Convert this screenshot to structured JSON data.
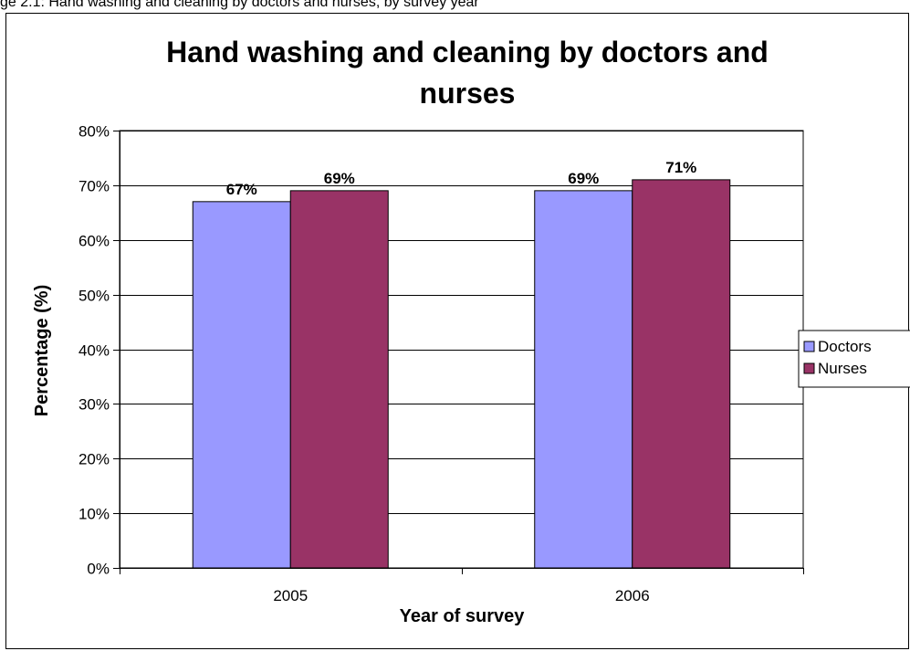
{
  "caption": "ge 2.1: Hand washing and cleaning by doctors and nurses, by survey year",
  "chart_data": {
    "type": "bar",
    "title_lines": [
      "Hand washing and cleaning by doctors and",
      "nurses"
    ],
    "xlabel": "Year of survey",
    "ylabel": "Percentage (%)",
    "categories": [
      "2005",
      "2006"
    ],
    "series": [
      {
        "name": "Doctors",
        "values": [
          67,
          69
        ],
        "labels": [
          "67%",
          "69%"
        ],
        "color": "#9999ff"
      },
      {
        "name": "Nurses",
        "values": [
          69,
          71
        ],
        "labels": [
          "69%",
          "71%"
        ],
        "color": "#993366"
      }
    ],
    "ylim": [
      0,
      80
    ],
    "yticks": [
      0,
      10,
      20,
      30,
      40,
      50,
      60,
      70,
      80
    ],
    "ytick_labels": [
      "0%",
      "10%",
      "20%",
      "30%",
      "40%",
      "50%",
      "60%",
      "70%",
      "80%"
    ],
    "grid": true,
    "legend_position": "right"
  }
}
